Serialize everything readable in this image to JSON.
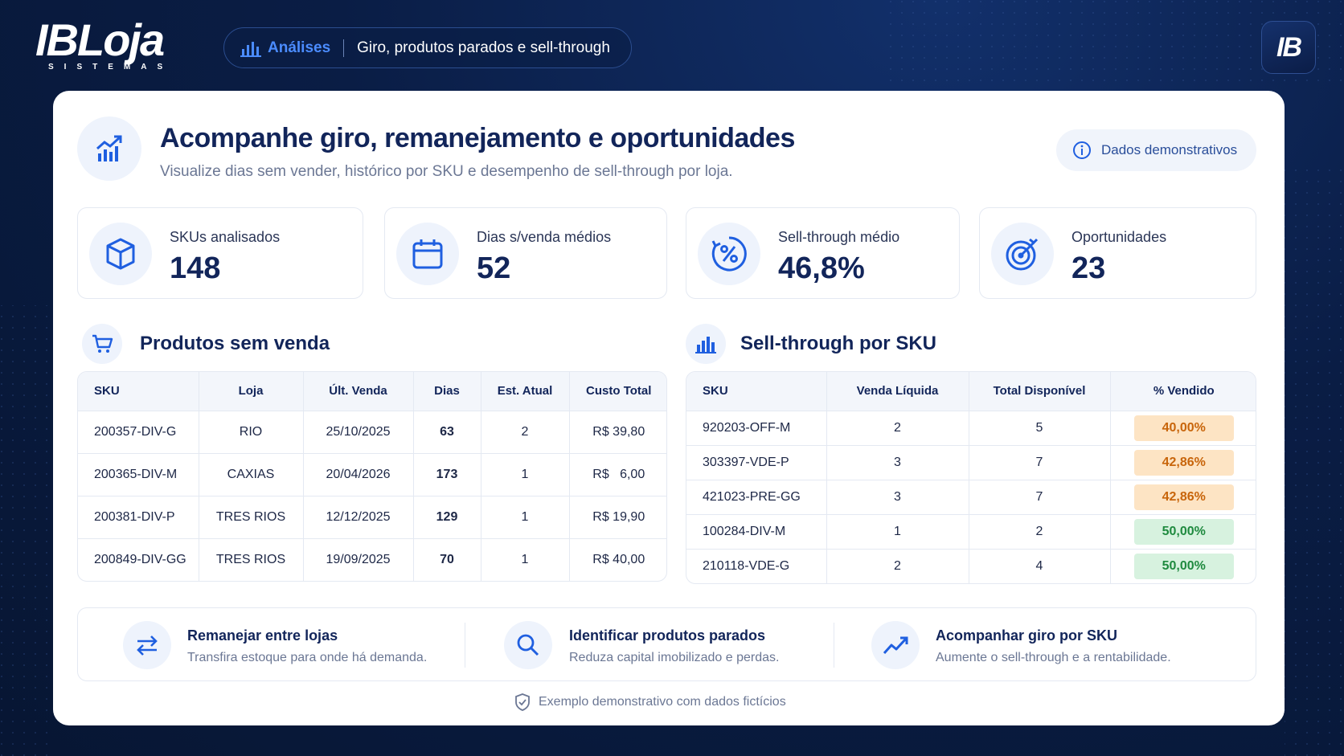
{
  "brand": {
    "logo_main": "IBLoja",
    "logo_sub": "SISTEMAS",
    "badge": "IB"
  },
  "nav": {
    "section": "Análises",
    "subtitle": "Giro, produtos parados e sell-through"
  },
  "hero": {
    "title": "Acompanhe giro, remanejamento e oportunidades",
    "subtitle": "Visualize dias sem vender, histórico por SKU e desempenho de sell-through por loja.",
    "chip": "Dados demonstrativos"
  },
  "kpis": [
    {
      "label": "SKUs analisados",
      "value": "148",
      "icon": "box-icon"
    },
    {
      "label": "Dias s/venda médios",
      "value": "52",
      "icon": "calendar-icon"
    },
    {
      "label": "Sell-through médio",
      "value": "46,8%",
      "icon": "percent-icon"
    },
    {
      "label": "Oportunidades",
      "value": "23",
      "icon": "target-icon"
    }
  ],
  "sem_venda": {
    "title": "Produtos sem venda",
    "headers": [
      "SKU",
      "Loja",
      "Últ. Venda",
      "Dias",
      "Est. Atual",
      "Custo Total"
    ],
    "rows": [
      [
        "200357-DIV-G",
        "RIO",
        "25/10/2025",
        "63",
        "2",
        "R$ 39,80"
      ],
      [
        "200365-DIV-M",
        "CAXIAS",
        "20/04/2026",
        "173",
        "1",
        "R$   6,00"
      ],
      [
        "200381-DIV-P",
        "TRES RIOS",
        "12/12/2025",
        "129",
        "1",
        "R$ 19,90"
      ],
      [
        "200849-DIV-GG",
        "TRES RIOS",
        "19/09/2025",
        "70",
        "1",
        "R$ 40,00"
      ]
    ]
  },
  "sell_through": {
    "title": "Sell-through por SKU",
    "headers": [
      "SKU",
      "Venda Líquida",
      "Total Disponível",
      "% Vendido"
    ],
    "rows": [
      [
        "920203-OFF-M",
        "2",
        "5",
        "40,00%"
      ],
      [
        "303397-VDE-P",
        "3",
        "7",
        "42,86%"
      ],
      [
        "421023-PRE-GG",
        "3",
        "7",
        "42,86%"
      ],
      [
        "100284-DIV-M",
        "1",
        "2",
        "50,00%"
      ],
      [
        "210118-VDE-G",
        "2",
        "4",
        "50,00%"
      ]
    ],
    "badge_colors": [
      "orange",
      "orange",
      "orange",
      "green",
      "green"
    ]
  },
  "actions": [
    {
      "title": "Remanejar entre lojas",
      "desc": "Transfira estoque para onde há demanda.",
      "icon": "swap-arrows-icon"
    },
    {
      "title": "Identificar produtos parados",
      "desc": "Reduza capital imobilizado e perdas.",
      "icon": "search-icon"
    },
    {
      "title": "Acompanhar giro por SKU",
      "desc": "Aumente o sell-through e a rentabilidade.",
      "icon": "trend-up-icon"
    }
  ],
  "footnote": "Exemplo demonstrativo com dados fictícios",
  "colors": {
    "accent": "#1f5fe0",
    "danger": "#d8261f",
    "navy": "#12255a"
  }
}
